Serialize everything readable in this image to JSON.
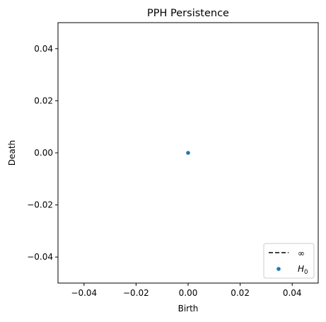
{
  "chart_data": {
    "type": "scatter",
    "title": "PPH Persistence",
    "xlabel": "Birth",
    "ylabel": "Death",
    "xlim": [
      -0.05,
      0.05
    ],
    "ylim": [
      -0.05,
      0.05
    ],
    "x_ticks": [
      -0.04,
      -0.02,
      0.0,
      0.02,
      0.04
    ],
    "x_tick_labels": [
      "−0.04",
      "−0.02",
      "0.00",
      "0.02",
      "0.04"
    ],
    "y_ticks": [
      -0.04,
      -0.02,
      0.0,
      0.02,
      0.04
    ],
    "y_tick_labels": [
      "−0.04",
      "−0.02",
      "0.00",
      "0.02",
      "0.04"
    ],
    "grid": false,
    "legend_position": "bottom-right",
    "series": [
      {
        "name": "H0",
        "legend_label_base": "H",
        "legend_label_sub": "0",
        "color": "#1f77b4",
        "points": [
          {
            "x": 0.0,
            "y": 0.0
          }
        ]
      }
    ],
    "reference_lines": [
      {
        "name": "∞",
        "style": "dashed",
        "color": "#000000"
      }
    ]
  }
}
